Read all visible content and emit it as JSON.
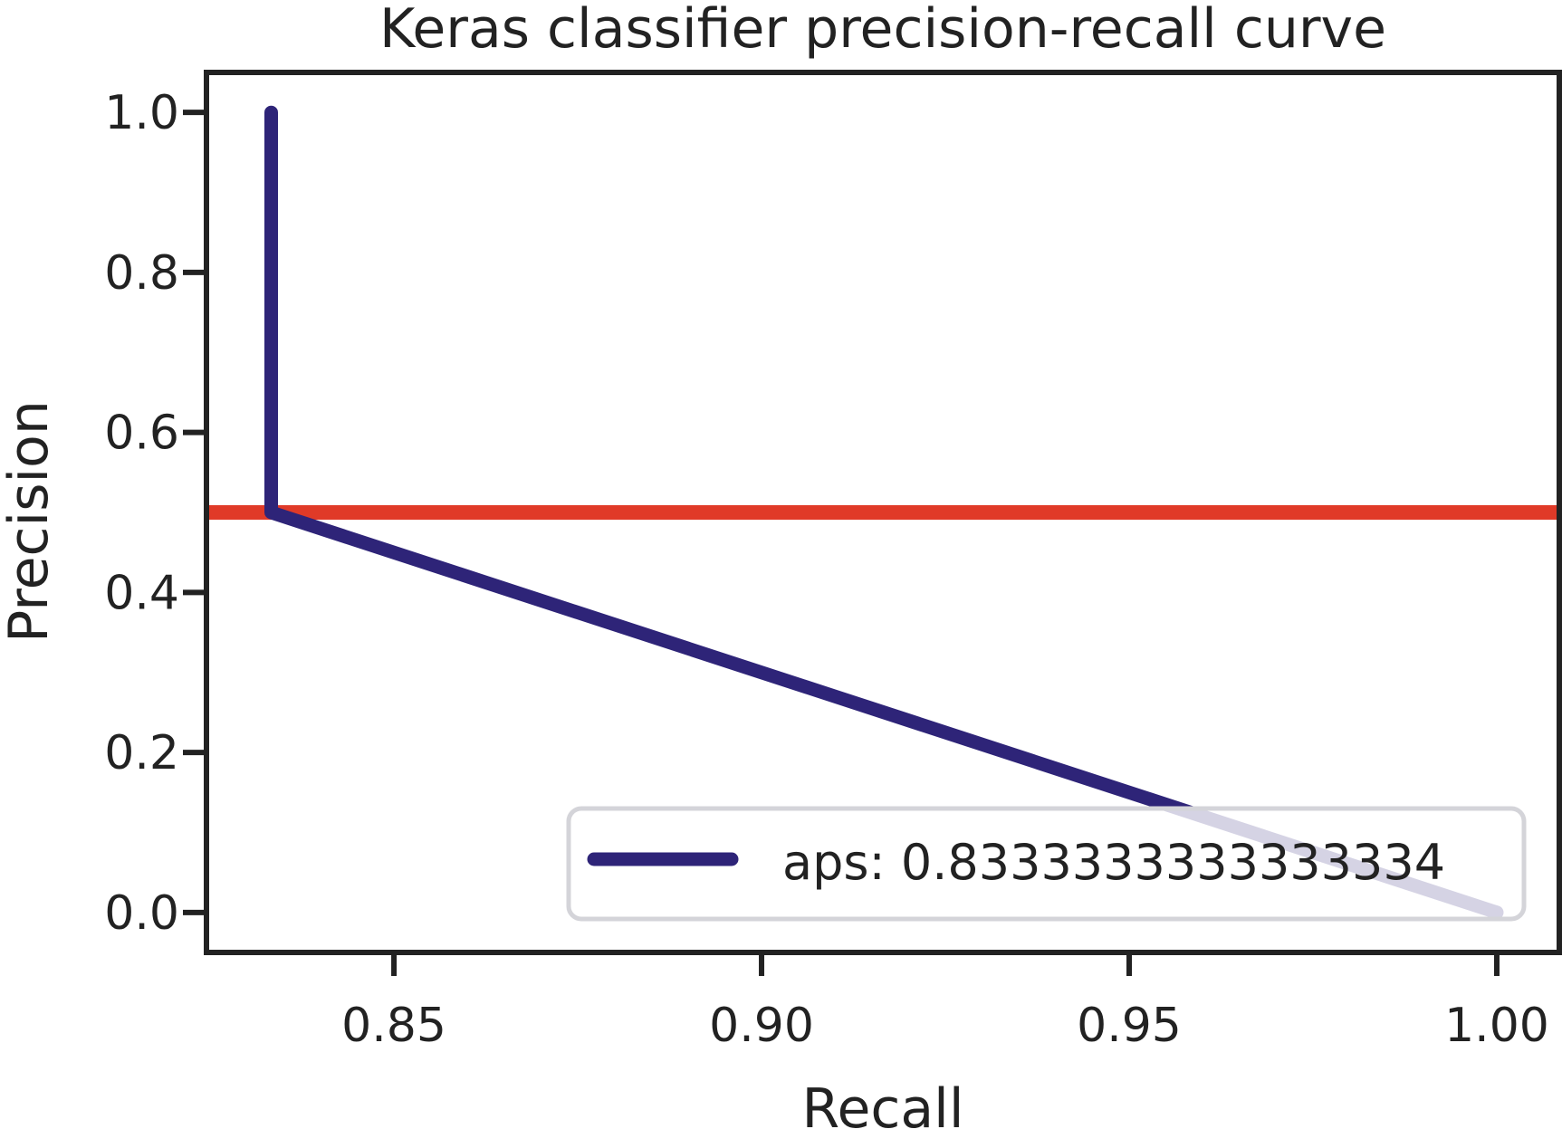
{
  "chart_data": {
    "type": "line",
    "title": "Keras classifier precision-recall curve",
    "xlabel": "Recall",
    "ylabel": "Precision",
    "xlim": [
      0.8245,
      1.0085
    ],
    "ylim": [
      -0.05,
      1.05
    ],
    "xticks": [
      0.85,
      0.9,
      0.95,
      1.0
    ],
    "xtick_labels": [
      "0.85",
      "0.90",
      "0.95",
      "1.00"
    ],
    "yticks": [
      0.0,
      0.2,
      0.4,
      0.6,
      0.8,
      1.0
    ],
    "ytick_labels": [
      "0.0",
      "0.2",
      "0.4",
      "0.6",
      "0.8",
      "1.0"
    ],
    "grid": false,
    "legend_position": "lower right",
    "series": [
      {
        "name": "aps: 0.8333333333333334",
        "color": "#2e2478",
        "x": [
          0.8333,
          0.8333,
          1.0
        ],
        "y": [
          1.0,
          0.5,
          0.0
        ]
      }
    ],
    "reference_lines": [
      {
        "orientation": "horizontal",
        "y": 0.5,
        "color": "#e03a28"
      }
    ]
  }
}
